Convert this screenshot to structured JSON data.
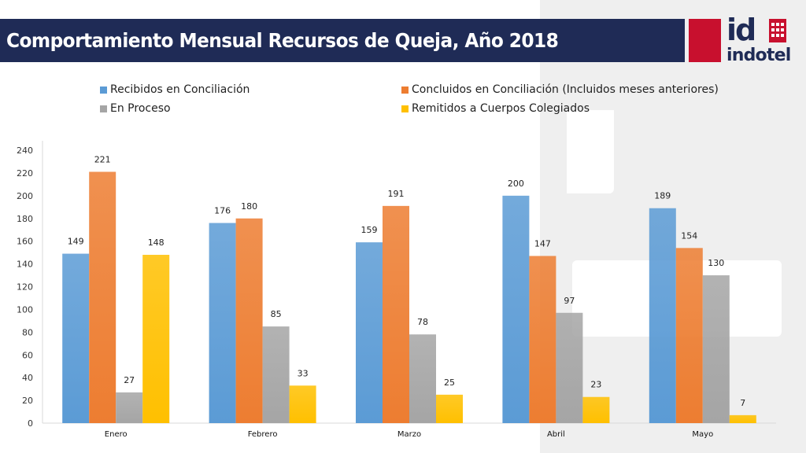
{
  "header": {
    "title": "Comportamiento Mensual Recursos de Queja, Año 2018"
  },
  "logo": {
    "mark": "id",
    "word": "indotel",
    "brand_color": "#c8102e",
    "text_color": "#1f2b56"
  },
  "chart_data": {
    "type": "bar",
    "title": "",
    "xlabel": "",
    "ylabel": "",
    "ylim": [
      0,
      240
    ],
    "yticks": [
      0,
      20,
      40,
      60,
      80,
      100,
      120,
      140,
      160,
      180,
      200,
      220,
      240
    ],
    "grid": false,
    "legend_position": "top",
    "categories": [
      "Enero",
      "Febrero",
      "Marzo",
      "Abril",
      "Mayo"
    ],
    "series": [
      {
        "name": "Recibidos en Conciliación",
        "color": "#5b9bd5",
        "values": [
          149,
          176,
          159,
          200,
          189
        ]
      },
      {
        "name": "Concluidos en Conciliación (Incluidos meses anteriores)",
        "color": "#ed7d31",
        "values": [
          221,
          180,
          191,
          147,
          154
        ]
      },
      {
        "name": "En Proceso",
        "color": "#a5a5a5",
        "values": [
          27,
          85,
          78,
          97,
          130
        ]
      },
      {
        "name": "Remitidos a Cuerpos Colegiados",
        "color": "#ffc000",
        "values": [
          148,
          33,
          25,
          23,
          7
        ]
      }
    ]
  }
}
